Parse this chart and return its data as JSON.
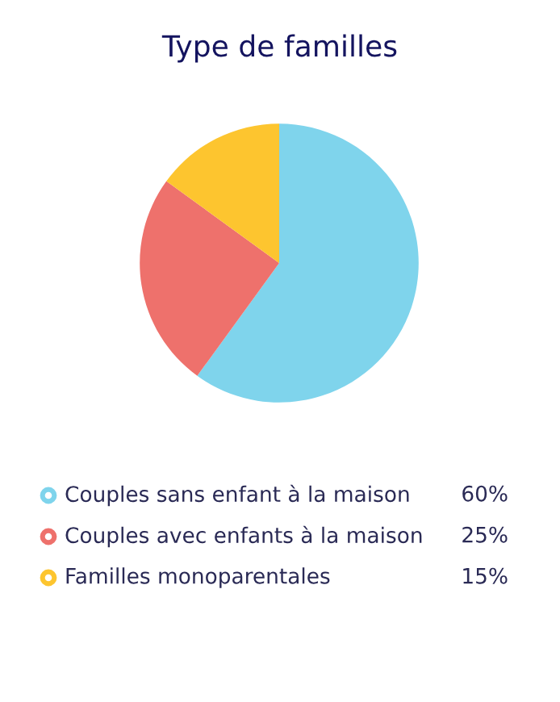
{
  "chart_data": {
    "type": "pie",
    "title": "Type de familles",
    "categories": [
      "Couples sans enfant à la maison",
      "Couples avec enfants à la maison",
      "Familles monoparentales"
    ],
    "values": [
      60,
      25,
      15
    ],
    "colors": [
      "#7fd4ec",
      "#ee716c",
      "#fdc52f"
    ],
    "value_labels": [
      "60%",
      "25%",
      "15%"
    ],
    "legend": "bottom"
  }
}
